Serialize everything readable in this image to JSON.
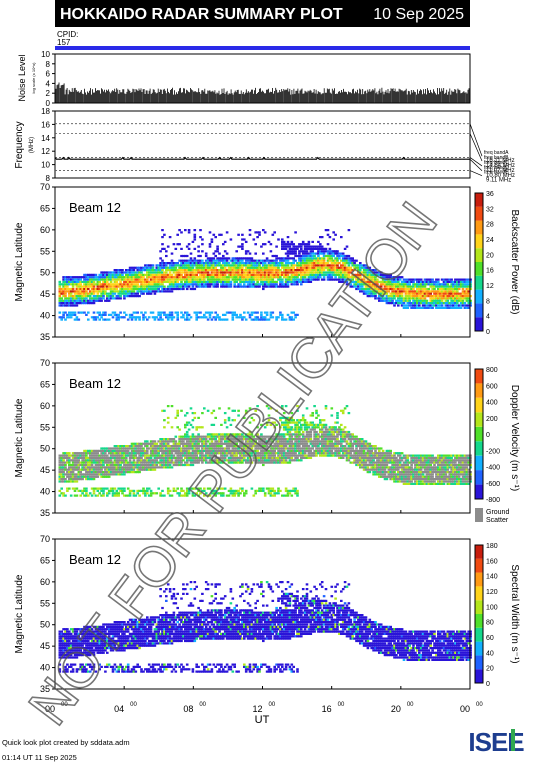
{
  "header": {
    "title": "HOKKAIDO RADAR SUMMARY PLOT",
    "date": "10 Sep 2025",
    "cpid_label": "CPID:",
    "cpid_value": "157"
  },
  "watermark": "NOT FOR PUBLICATION",
  "footer": {
    "created_by": "Quick look plot created by sddata.adm",
    "created_at": "01:14 UT 11 Sep 2025",
    "logo": "ISEE"
  },
  "chart_data": [
    {
      "type": "line",
      "name": "noise",
      "ylabel": "Noise Level",
      "ylabel_sub": "log scale (x 10^x)",
      "ylim": [
        0,
        10
      ],
      "yticks": [
        "0",
        "2",
        "4",
        "6",
        "8",
        "10"
      ],
      "x_range_hours": [
        0,
        24
      ],
      "baseline_level": 2.4
    },
    {
      "type": "line",
      "name": "frequency",
      "ylabel": "Frequency",
      "yunit": "(MHz)",
      "ylim": [
        8,
        18
      ],
      "yticks": [
        "8",
        "10",
        "12",
        "14",
        "16",
        "18"
      ],
      "bands": [
        {
          "name": "freq bandA",
          "label": "16.11 MHz",
          "value": 16.11
        },
        {
          "name": "freq bandB",
          "label": "14.64 MHz",
          "value": 14.64
        },
        {
          "name": "freq bandC",
          "label": "11.07 MHz",
          "value": 11.07
        },
        {
          "name": "freq bandD",
          "label": "10.80 MHz",
          "value": 10.8
        },
        {
          "name": "freq bandE",
          "label": "9.11 MHz",
          "value": 9.11
        }
      ]
    },
    {
      "type": "heatmap",
      "name": "power",
      "beam_label": "Beam 12",
      "ylabel": "Magnetic Latitude",
      "ylim": [
        35,
        70
      ],
      "yticks": [
        "35",
        "40",
        "45",
        "50",
        "55",
        "60",
        "65",
        "70"
      ],
      "colorbar_label": "Backscatter Power (dB)",
      "colorbar_ticks": [
        "0",
        "4",
        "8",
        "12",
        "16",
        "20",
        "24",
        "28",
        "32",
        "36"
      ],
      "colorbar_range": [
        0,
        36
      ]
    },
    {
      "type": "heatmap",
      "name": "velocity",
      "beam_label": "Beam 12",
      "ylabel": "Magnetic Latitude",
      "ylim": [
        35,
        70
      ],
      "yticks": [
        "35",
        "40",
        "45",
        "50",
        "55",
        "60",
        "65",
        "70"
      ],
      "colorbar_label": "Doppler Velocity (m s⁻¹)",
      "colorbar_ticks": [
        "800",
        "600",
        "400",
        "200",
        "0",
        "-200",
        "-400",
        "-600",
        "-800"
      ],
      "colorbar_range": [
        -800,
        800
      ],
      "ground_scatter_label": "Ground",
      "ground_scatter_label2": "Scatter"
    },
    {
      "type": "heatmap",
      "name": "width",
      "beam_label": "Beam 12",
      "ylabel": "Magnetic Latitude",
      "ylim": [
        35,
        70
      ],
      "yticks": [
        "35",
        "40",
        "45",
        "50",
        "55",
        "60",
        "65",
        "70"
      ],
      "colorbar_label": "Spectral Width (m s⁻¹)",
      "colorbar_ticks": [
        "0",
        "20",
        "40",
        "60",
        "80",
        "100",
        "120",
        "140",
        "160",
        "180"
      ],
      "colorbar_range": [
        0,
        180
      ],
      "xlabel": "UT",
      "xticks": [
        "00",
        "04",
        "08",
        "12",
        "16",
        "20",
        "00"
      ],
      "xticks_sup": "00"
    }
  ],
  "colors": {
    "accent_bar": "#2a2ae8",
    "ground_scatter": "#8c8c8c",
    "power_scale": [
      "#2a14d8",
      "#1f62ff",
      "#12b0ff",
      "#14d88c",
      "#4fe02a",
      "#b4e61a",
      "#ffd41a",
      "#ff9a14",
      "#f04b12",
      "#c81e0e"
    ],
    "velocity_scale": [
      "#2a14d8",
      "#1f62ff",
      "#12b0ff",
      "#14d88c",
      "#4fe02a",
      "#b4e61a",
      "#ffd41a",
      "#ff9a14",
      "#f04b12"
    ],
    "width_scale": [
      "#2a14d8",
      "#1f62ff",
      "#12b0ff",
      "#14d88c",
      "#4fe02a",
      "#b4e61a",
      "#ffd41a",
      "#ff9a14",
      "#f04b12",
      "#c81e0e"
    ]
  }
}
